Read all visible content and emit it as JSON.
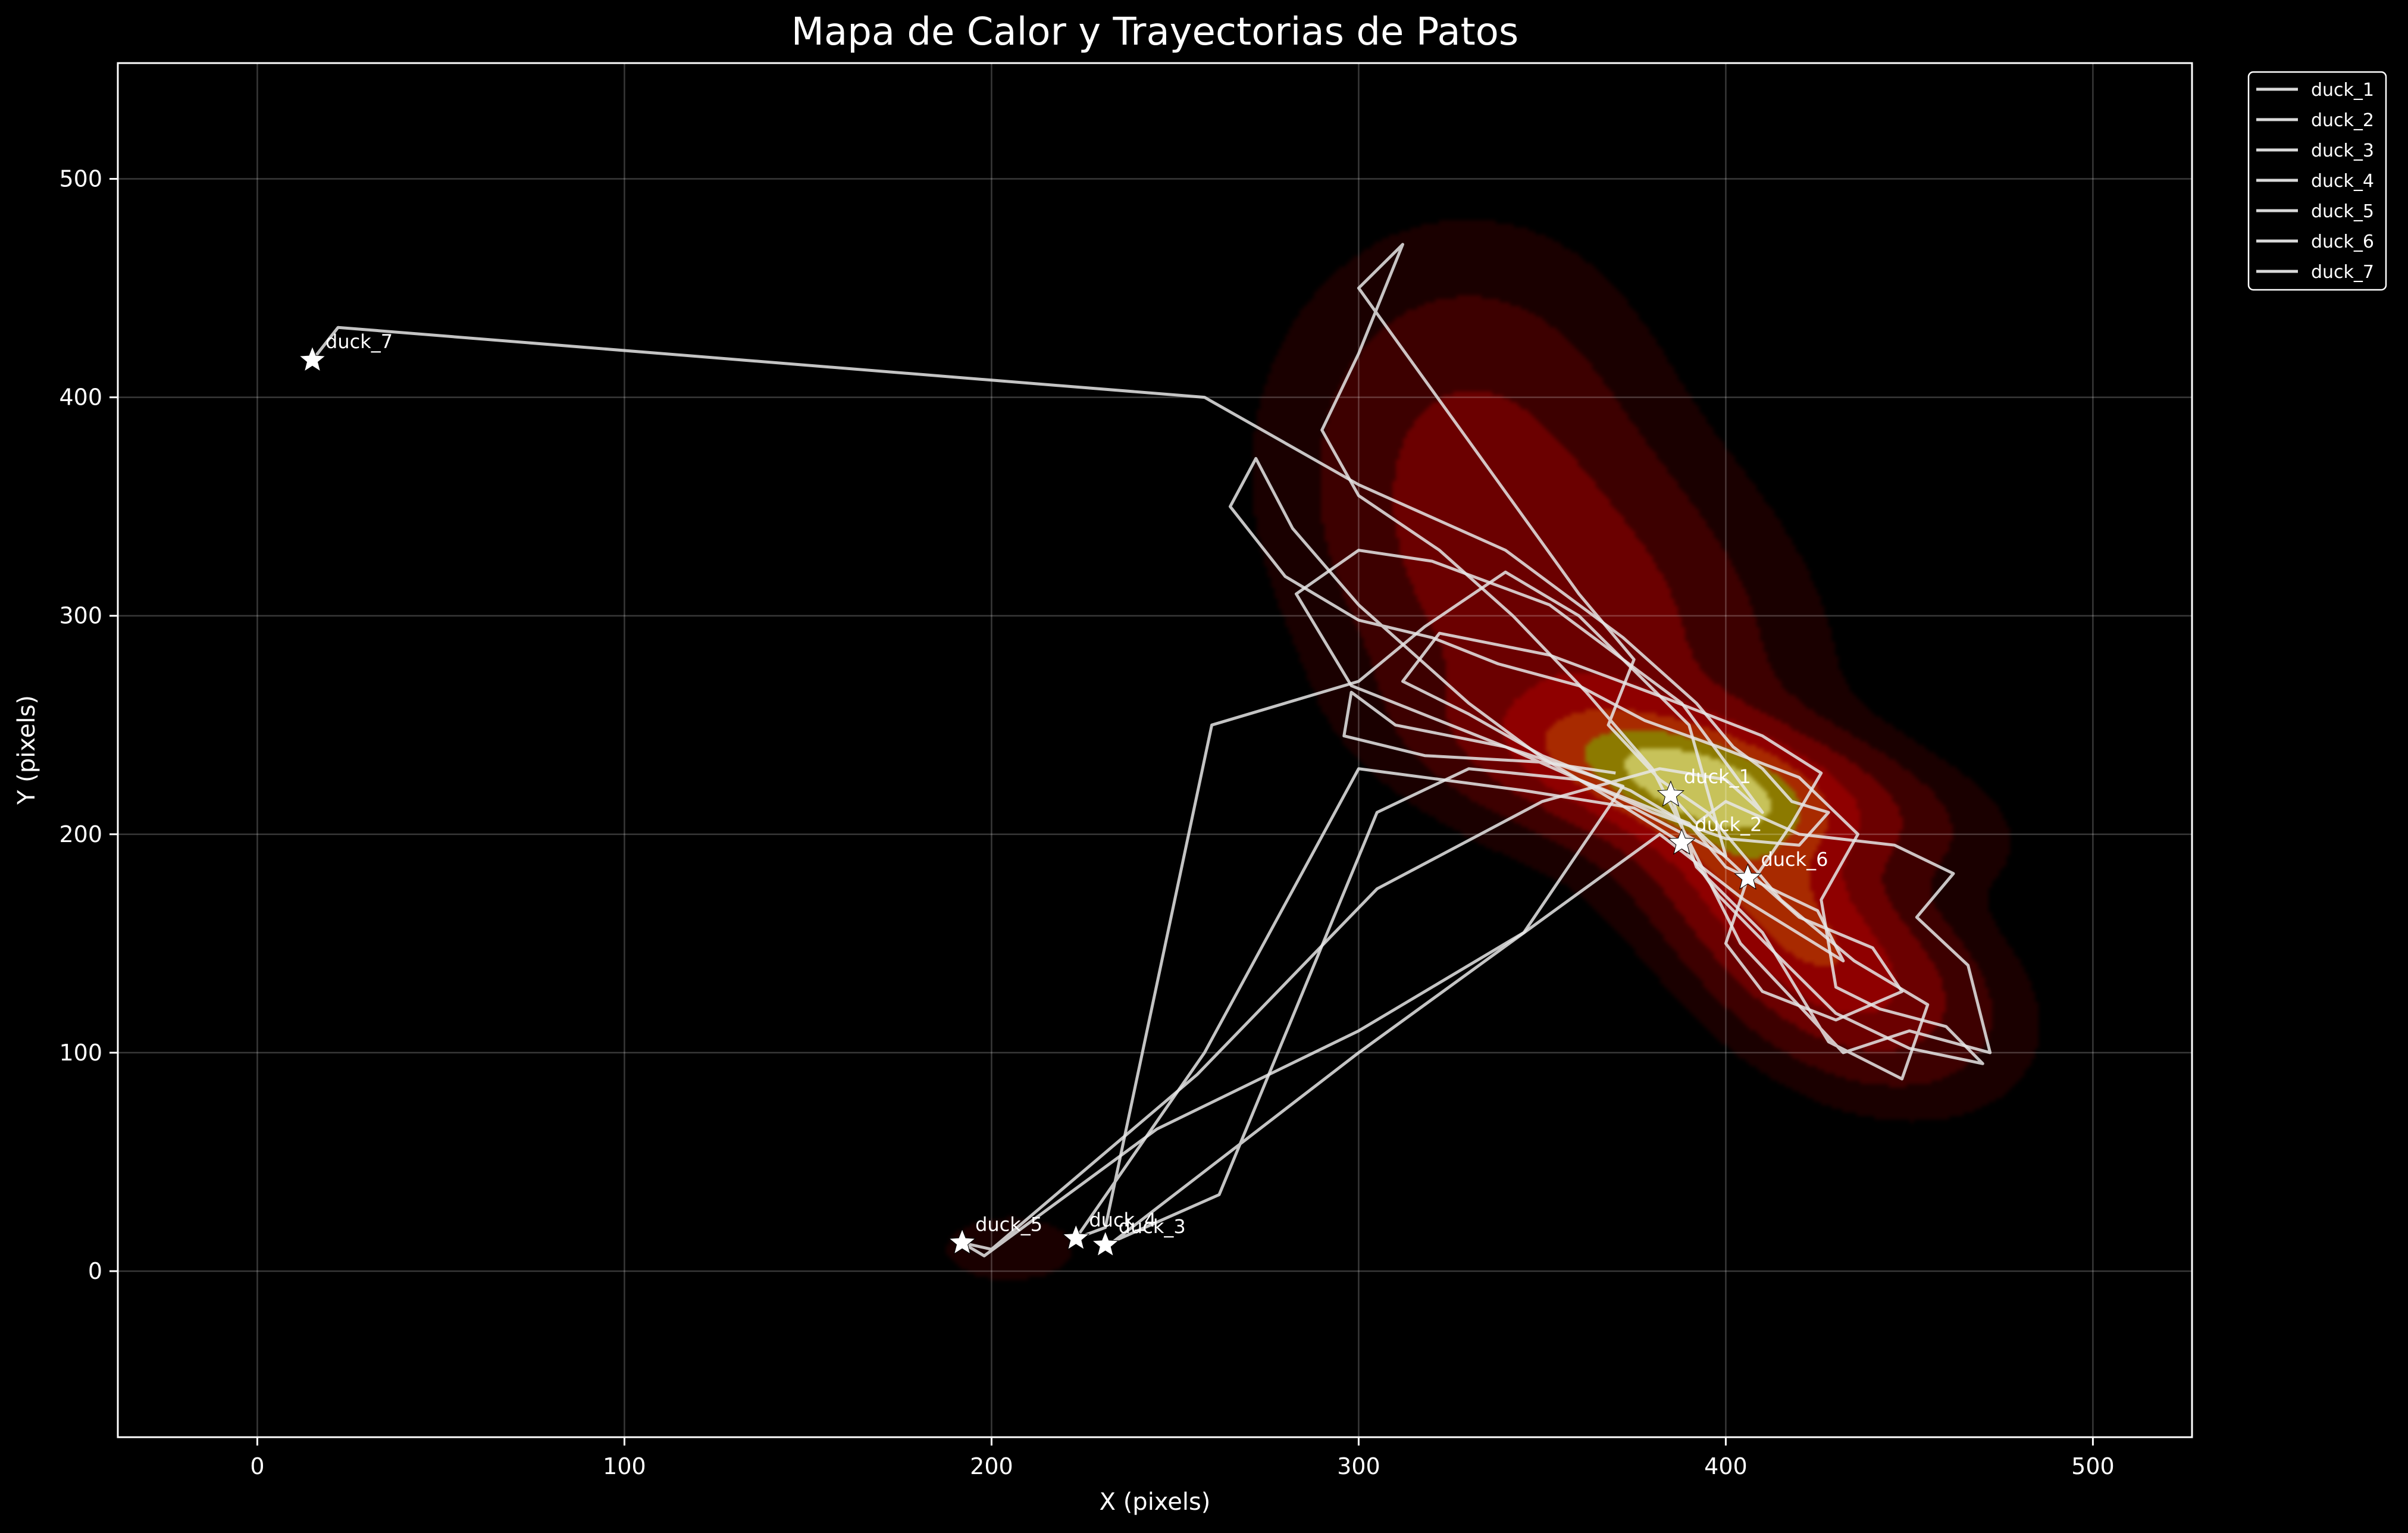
{
  "chart_data": {
    "type": "heatmap",
    "title": "Mapa de Calor y Trayectorias de Patos",
    "xlabel": "X (pixels)",
    "ylabel": "Y (pixels)",
    "xlim": [
      -38,
      527
    ],
    "ylim": [
      -76,
      553
    ],
    "xticks": [
      0,
      100,
      200,
      300,
      400,
      500
    ],
    "yticks": [
      0,
      100,
      200,
      300,
      400,
      500
    ],
    "grid": true,
    "legend_position": "outside-top-right",
    "background_color": "#000000",
    "line_color": "#e6e6e6",
    "heat_colors": [
      "#1a0000",
      "#3d0000",
      "#6b0000",
      "#8f0000",
      "#a82a00",
      "#8c7a00",
      "#c7c25a"
    ],
    "heat_kernels": [
      {
        "x": 392,
        "y": 225,
        "sx": 34,
        "sy": 22,
        "rho": -0.5,
        "w": 1.0
      },
      {
        "x": 410,
        "y": 175,
        "sx": 22,
        "sy": 38,
        "rho": -0.55,
        "w": 0.7
      },
      {
        "x": 355,
        "y": 300,
        "sx": 35,
        "sy": 55,
        "rho": -0.3,
        "w": 0.45
      },
      {
        "x": 330,
        "y": 390,
        "sx": 28,
        "sy": 50,
        "rho": 0.0,
        "w": 0.22
      },
      {
        "x": 440,
        "y": 130,
        "sx": 22,
        "sy": 28,
        "rho": -0.3,
        "w": 0.35
      },
      {
        "x": 205,
        "y": 10,
        "sx": 12,
        "sy": 10,
        "rho": 0.0,
        "w": 0.12
      }
    ],
    "series": [
      {
        "name": "duck_1",
        "start": [
          385,
          218
        ],
        "points": [
          [
            385,
            218
          ],
          [
            392,
            205
          ],
          [
            400,
            215
          ],
          [
            420,
            200
          ],
          [
            446,
            195
          ],
          [
            462,
            182
          ],
          [
            452,
            162
          ],
          [
            466,
            140
          ],
          [
            472,
            100
          ],
          [
            450,
            110
          ],
          [
            432,
            100
          ],
          [
            418,
            125
          ],
          [
            404,
            150
          ],
          [
            395,
            180
          ],
          [
            380,
            230
          ],
          [
            362,
            265
          ],
          [
            342,
            300
          ],
          [
            322,
            330
          ],
          [
            300,
            355
          ],
          [
            290,
            385
          ],
          [
            300,
            420
          ],
          [
            312,
            470
          ],
          [
            300,
            450
          ],
          [
            330,
            380
          ],
          [
            360,
            310
          ],
          [
            375,
            280
          ],
          [
            368,
            250
          ],
          [
            382,
            225
          ],
          [
            395,
            210
          ],
          [
            415,
            170
          ],
          [
            435,
            142
          ],
          [
            455,
            122
          ],
          [
            448,
            88
          ],
          [
            428,
            105
          ],
          [
            410,
            155
          ],
          [
            392,
            185
          ],
          [
            385,
            218
          ]
        ]
      },
      {
        "name": "duck_2",
        "start": [
          388,
          196
        ],
        "points": [
          [
            388,
            196
          ],
          [
            370,
            215
          ],
          [
            350,
            235
          ],
          [
            330,
            260
          ],
          [
            300,
            305
          ],
          [
            282,
            340
          ],
          [
            272,
            372
          ],
          [
            265,
            350
          ],
          [
            280,
            318
          ],
          [
            300,
            298
          ],
          [
            320,
            290
          ],
          [
            338,
            278
          ],
          [
            360,
            268
          ],
          [
            378,
            252
          ],
          [
            398,
            240
          ],
          [
            420,
            226
          ],
          [
            436,
            200
          ],
          [
            426,
            170
          ],
          [
            430,
            130
          ],
          [
            442,
            120
          ],
          [
            460,
            112
          ],
          [
            470,
            95
          ],
          [
            450,
            102
          ],
          [
            430,
            118
          ],
          [
            412,
            148
          ],
          [
            398,
            172
          ],
          [
            388,
            196
          ]
        ]
      },
      {
        "name": "duck_3",
        "start": [
          231,
          12
        ],
        "points": [
          [
            231,
            12
          ],
          [
            262,
            35
          ],
          [
            305,
            210
          ],
          [
            330,
            230
          ],
          [
            360,
            225
          ],
          [
            390,
            205
          ],
          [
            400,
            185
          ],
          [
            425,
            165
          ],
          [
            432,
            142
          ],
          [
            405,
            170
          ],
          [
            382,
            200
          ],
          [
            300,
            100
          ],
          [
            232,
            12
          ],
          [
            231,
            12
          ]
        ]
      },
      {
        "name": "duck_4",
        "start": [
          223,
          15
        ],
        "points": [
          [
            223,
            15
          ],
          [
            258,
            100
          ],
          [
            300,
            230
          ],
          [
            345,
            220
          ],
          [
            375,
            212
          ],
          [
            400,
            190
          ],
          [
            390,
            250
          ],
          [
            360,
            300
          ],
          [
            340,
            320
          ],
          [
            318,
            295
          ],
          [
            300,
            270
          ],
          [
            260,
            250
          ],
          [
            231,
            20
          ],
          [
            223,
            15
          ]
        ]
      },
      {
        "name": "duck_5",
        "start": [
          192,
          13
        ],
        "points": [
          [
            192,
            13
          ],
          [
            200,
            10
          ],
          [
            256,
            90
          ],
          [
            305,
            175
          ],
          [
            350,
            215
          ],
          [
            382,
            230
          ],
          [
            400,
            225
          ],
          [
            410,
            210
          ],
          [
            388,
            260
          ],
          [
            352,
            305
          ],
          [
            320,
            325
          ],
          [
            300,
            330
          ],
          [
            283,
            310
          ],
          [
            298,
            268
          ],
          [
            340,
            240
          ],
          [
            372,
            222
          ],
          [
            345,
            155
          ],
          [
            300,
            110
          ],
          [
            245,
            65
          ],
          [
            198,
            7
          ],
          [
            192,
            13
          ]
        ]
      },
      {
        "name": "duck_6",
        "start": [
          406,
          180
        ],
        "points": [
          [
            406,
            180
          ],
          [
            392,
            202
          ],
          [
            374,
            220
          ],
          [
            350,
            236
          ],
          [
            330,
            255
          ],
          [
            312,
            270
          ],
          [
            322,
            292
          ],
          [
            352,
            282
          ],
          [
            384,
            262
          ],
          [
            410,
            245
          ],
          [
            426,
            228
          ],
          [
            418,
            205
          ],
          [
            408,
            180
          ],
          [
            420,
            162
          ],
          [
            440,
            148
          ],
          [
            448,
            128
          ],
          [
            430,
            115
          ],
          [
            410,
            128
          ],
          [
            400,
            150
          ],
          [
            406,
            180
          ]
        ]
      },
      {
        "name": "duck_7",
        "start": [
          15,
          417
        ],
        "points": [
          [
            15,
            417
          ],
          [
            22,
            432
          ],
          [
            258,
            400
          ],
          [
            300,
            360
          ],
          [
            340,
            330
          ],
          [
            372,
            290
          ],
          [
            392,
            260
          ],
          [
            402,
            240
          ],
          [
            410,
            230
          ],
          [
            418,
            215
          ],
          [
            428,
            210
          ],
          [
            420,
            195
          ],
          [
            400,
            198
          ],
          [
            380,
            210
          ],
          [
            360,
            225
          ],
          [
            340,
            240
          ],
          [
            310,
            250
          ],
          [
            298,
            265
          ],
          [
            296,
            245
          ],
          [
            318,
            236
          ],
          [
            350,
            233
          ],
          [
            370,
            228
          ]
        ]
      }
    ]
  }
}
